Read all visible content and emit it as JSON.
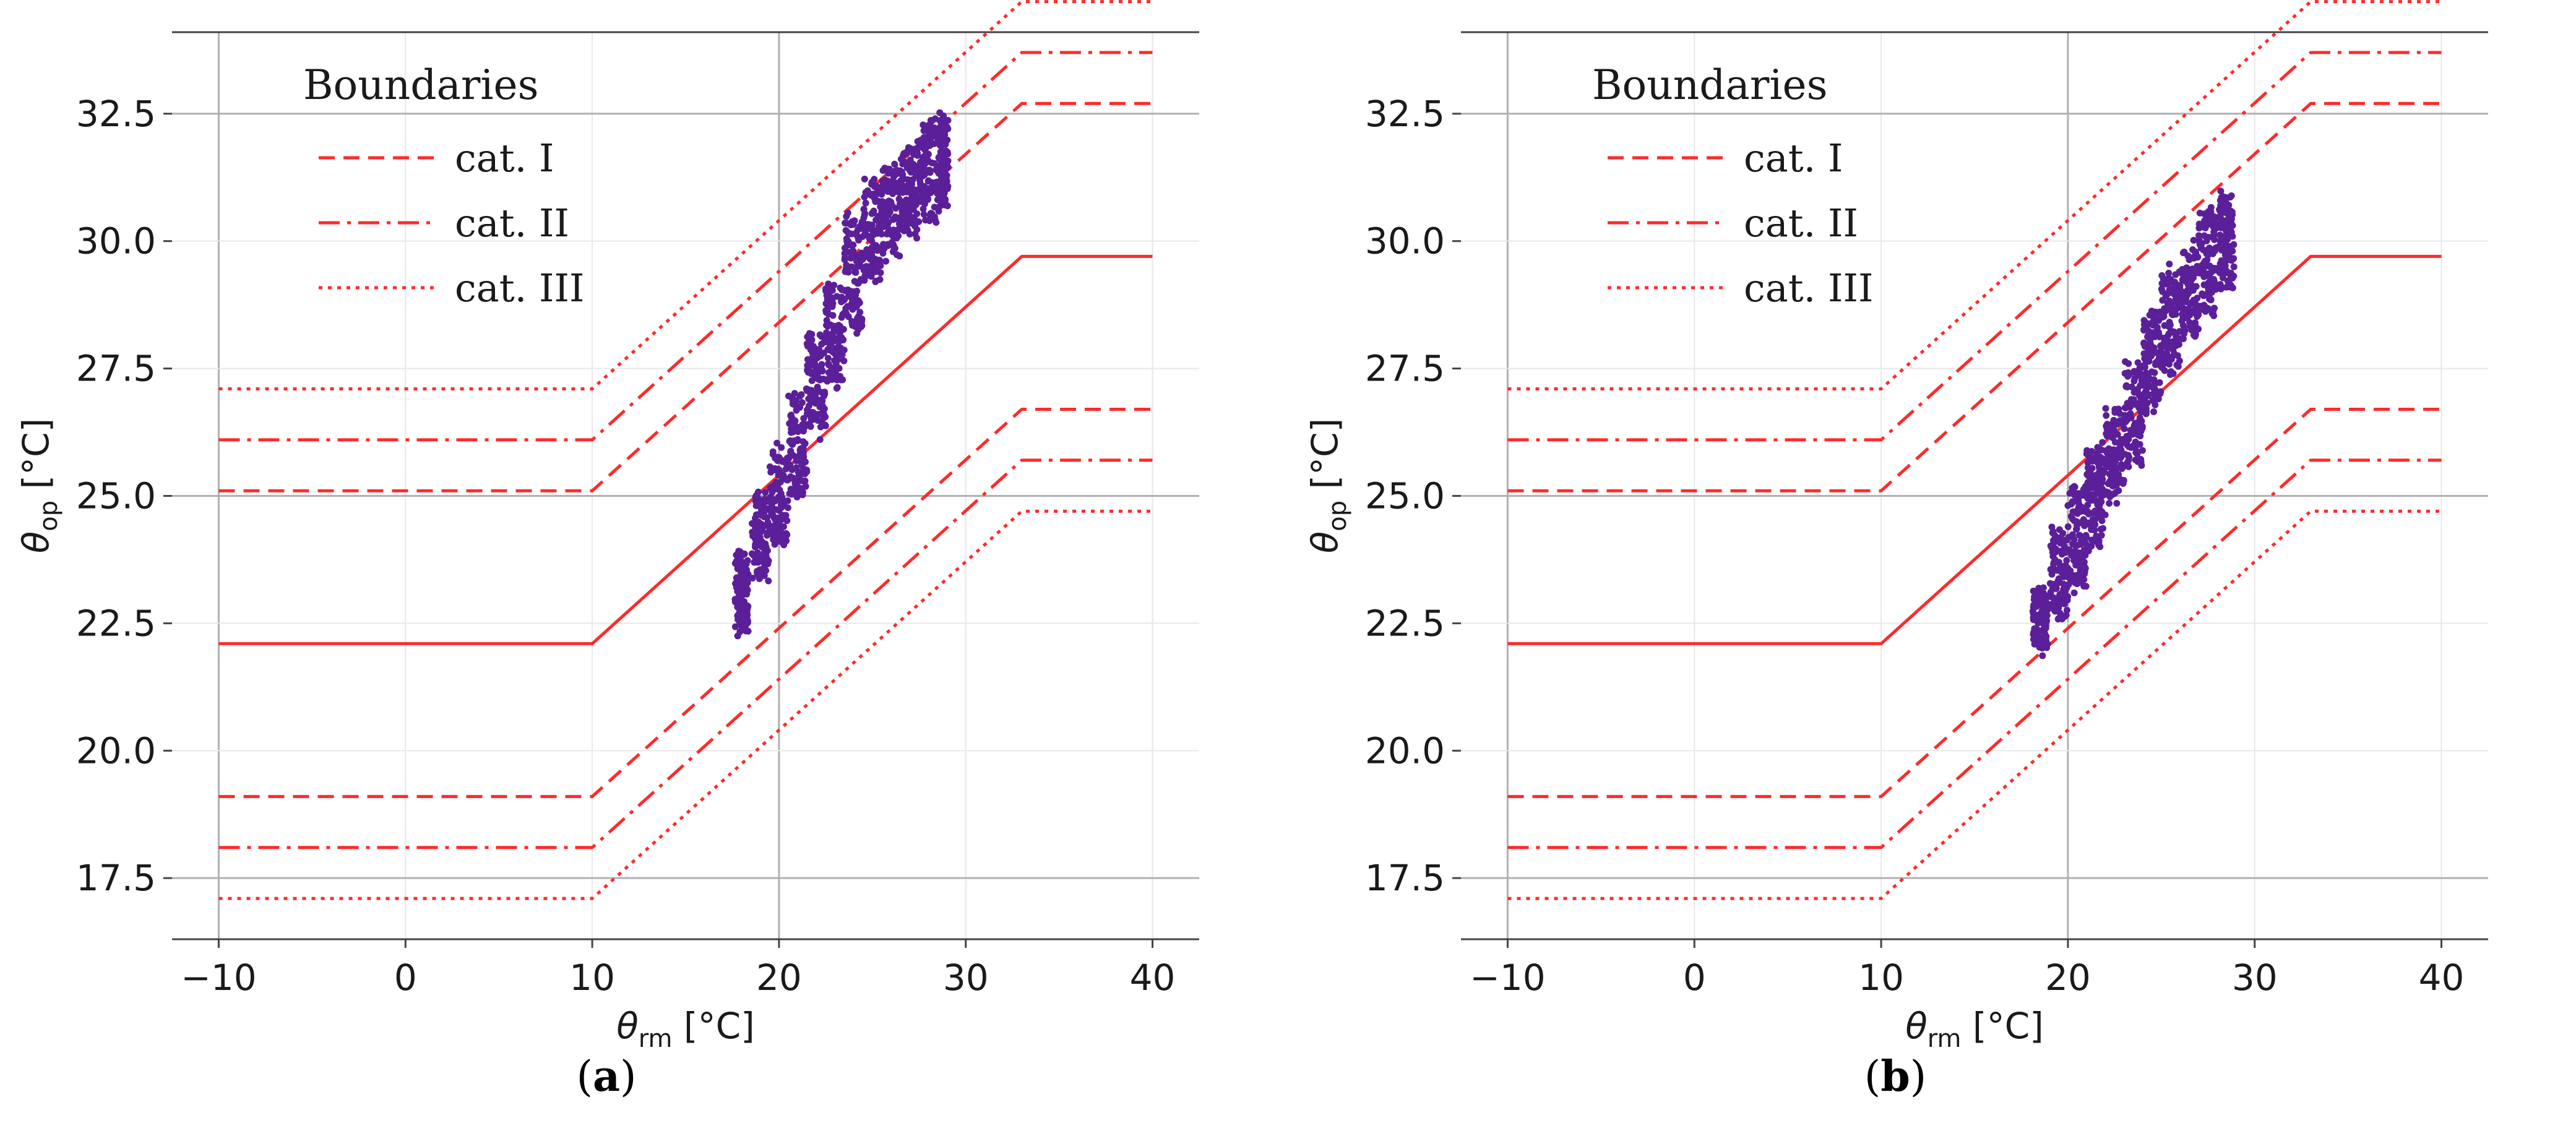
{
  "figure": {
    "panel_labels": [
      "a",
      "b"
    ]
  },
  "chart_data": [
    {
      "type": "scatter",
      "panel_label": "a",
      "xlabel": "θ",
      "xlabel_sub": "rm",
      "xlabel_unit": "[°C]",
      "ylabel": "θ",
      "ylabel_sub": "op",
      "ylabel_unit": "[°C]",
      "xlim": [
        -12.5,
        42.5
      ],
      "ylim": [
        16.3,
        34.1
      ],
      "xticks": [
        -10,
        0,
        10,
        20,
        30,
        40
      ],
      "xtick_labels": [
        "−10",
        "0",
        "10",
        "20",
        "30",
        "40"
      ],
      "yticks": [
        17.5,
        20.0,
        22.5,
        25.0,
        27.5,
        30.0,
        32.5
      ],
      "ytick_labels": [
        "17.5",
        "20.0",
        "22.5",
        "25.0",
        "27.5",
        "30.0",
        "32.5"
      ],
      "legend": {
        "title": "Boundaries",
        "entries": [
          {
            "label": "cat. I",
            "style": "dashed"
          },
          {
            "label": "cat. II",
            "style": "dashdot"
          },
          {
            "label": "cat. III",
            "style": "dotted"
          }
        ],
        "position": "upper-left"
      },
      "boundaries": {
        "x_range": [
          -10,
          40
        ],
        "x_breaks": [
          10,
          33
        ],
        "comfort_line": {
          "low": 22.1,
          "high": 29.7
        },
        "offsets": {
          "cat. I": 2,
          "cat. II": 3,
          "cat. III": 4
        },
        "upper_extra": 1
      },
      "line_color": "#ff2a2a",
      "scatter_color": "#5b1f99",
      "scatter_cloud": [
        {
          "x": 18.0,
          "y": 23.2,
          "w": 0.7,
          "h": 1.6
        },
        {
          "x": 19.0,
          "y": 24.2,
          "w": 0.9,
          "h": 1.6
        },
        {
          "x": 20.0,
          "y": 25.0,
          "w": 1.0,
          "h": 1.8
        },
        {
          "x": 21.0,
          "y": 26.0,
          "w": 1.0,
          "h": 2.0
        },
        {
          "x": 22.0,
          "y": 27.2,
          "w": 1.0,
          "h": 2.0
        },
        {
          "x": 23.0,
          "y": 28.2,
          "w": 1.0,
          "h": 2.0
        },
        {
          "x": 24.0,
          "y": 29.4,
          "w": 1.0,
          "h": 2.2
        },
        {
          "x": 25.0,
          "y": 30.2,
          "w": 1.0,
          "h": 2.0
        },
        {
          "x": 26.0,
          "y": 30.6,
          "w": 1.0,
          "h": 1.8
        },
        {
          "x": 27.0,
          "y": 31.0,
          "w": 1.0,
          "h": 1.8
        },
        {
          "x": 28.0,
          "y": 31.4,
          "w": 1.0,
          "h": 2.0
        },
        {
          "x": 28.8,
          "y": 31.6,
          "w": 0.5,
          "h": 1.8
        }
      ]
    },
    {
      "type": "scatter",
      "panel_label": "b",
      "xlabel": "θ",
      "xlabel_sub": "rm",
      "xlabel_unit": "[°C]",
      "ylabel": "θ",
      "ylabel_sub": "op",
      "ylabel_unit": "[°C]",
      "xlim": [
        -12.5,
        42.5
      ],
      "ylim": [
        16.3,
        34.1
      ],
      "xticks": [
        -10,
        0,
        10,
        20,
        30,
        40
      ],
      "xtick_labels": [
        "−10",
        "0",
        "10",
        "20",
        "30",
        "40"
      ],
      "yticks": [
        17.5,
        20.0,
        22.5,
        25.0,
        27.5,
        30.0,
        32.5
      ],
      "ytick_labels": [
        "17.5",
        "20.0",
        "22.5",
        "25.0",
        "27.5",
        "30.0",
        "32.5"
      ],
      "legend": {
        "title": "Boundaries",
        "entries": [
          {
            "label": "cat. I",
            "style": "dashed"
          },
          {
            "label": "cat. II",
            "style": "dashdot"
          },
          {
            "label": "cat. III",
            "style": "dotted"
          }
        ],
        "position": "upper-left"
      },
      "boundaries": {
        "x_range": [
          -10,
          40
        ],
        "x_breaks": [
          10,
          33
        ],
        "comfort_line": {
          "low": 22.1,
          "high": 29.7
        },
        "offsets": {
          "cat. I": 2,
          "cat. II": 3,
          "cat. III": 4
        },
        "upper_extra": 1
      },
      "line_color": "#ff2a2a",
      "scatter_color": "#5b1f99",
      "scatter_cloud": [
        {
          "x": 18.5,
          "y": 22.6,
          "w": 0.8,
          "h": 1.2
        },
        {
          "x": 19.5,
          "y": 23.4,
          "w": 1.0,
          "h": 1.8
        },
        {
          "x": 20.5,
          "y": 24.2,
          "w": 1.0,
          "h": 2.0
        },
        {
          "x": 21.5,
          "y": 25.0,
          "w": 1.0,
          "h": 2.0
        },
        {
          "x": 22.5,
          "y": 25.8,
          "w": 1.0,
          "h": 1.8
        },
        {
          "x": 23.5,
          "y": 26.6,
          "w": 1.0,
          "h": 2.0
        },
        {
          "x": 24.5,
          "y": 27.6,
          "w": 1.0,
          "h": 2.0
        },
        {
          "x": 25.5,
          "y": 28.4,
          "w": 1.0,
          "h": 2.0
        },
        {
          "x": 26.5,
          "y": 29.0,
          "w": 1.0,
          "h": 1.8
        },
        {
          "x": 27.5,
          "y": 29.6,
          "w": 1.0,
          "h": 2.0
        },
        {
          "x": 28.5,
          "y": 30.0,
          "w": 0.8,
          "h": 1.8
        }
      ]
    }
  ]
}
